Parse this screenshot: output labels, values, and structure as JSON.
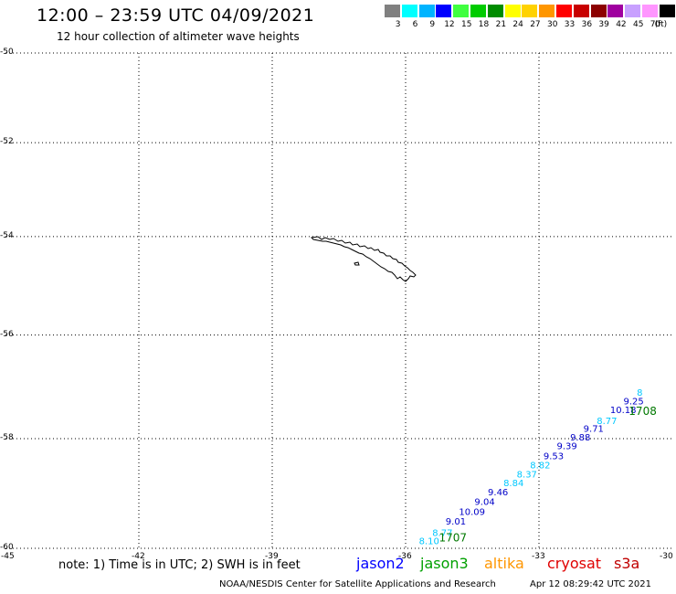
{
  "header": {
    "title": "12:00 – 23:59 UTC 04/09/2021",
    "subtitle": "12 hour collection of altimeter wave heights"
  },
  "legend": {
    "unit": "(ft)",
    "bins": [
      {
        "color": "#808080",
        "label": "3"
      },
      {
        "color": "#00ffff",
        "label": "6"
      },
      {
        "color": "#00b4ff",
        "label": "9"
      },
      {
        "color": "#0000ff",
        "label": "12"
      },
      {
        "color": "#40ff40",
        "label": "15"
      },
      {
        "color": "#00cc00",
        "label": "18"
      },
      {
        "color": "#008c00",
        "label": "21"
      },
      {
        "color": "#ffff00",
        "label": "24"
      },
      {
        "color": "#ffd200",
        "label": "27"
      },
      {
        "color": "#ff9600",
        "label": "30"
      },
      {
        "color": "#ff0000",
        "label": "33"
      },
      {
        "color": "#c80000",
        "label": "36"
      },
      {
        "color": "#8c0000",
        "label": "39"
      },
      {
        "color": "#a000a0",
        "label": "42"
      },
      {
        "color": "#c8a0ff",
        "label": "45"
      },
      {
        "color": "#ff96ff",
        "label": "70"
      },
      {
        "color": "#000000",
        "label": ""
      }
    ]
  },
  "map": {
    "lon_range": [
      -45,
      -30
    ],
    "lat_range": [
      -60,
      -50
    ],
    "grid": "dotted",
    "lat_labels": [
      "-50",
      "-52",
      "-54",
      "-56",
      "-58",
      "-60"
    ],
    "lon_labels": [
      "-45",
      "-42",
      "-39",
      "-36",
      "-33",
      "-30"
    ],
    "track_colors": {
      "cyan": "#00c8ff",
      "blue": "#0000c8",
      "green": "#007800"
    },
    "observations": [
      {
        "lon": -35.7,
        "lat": -59.93,
        "swh": "8.10",
        "color": "cyan"
      },
      {
        "lon": -35.4,
        "lat": -59.78,
        "swh": "8.77",
        "color": "cyan"
      },
      {
        "lon": -35.1,
        "lat": -59.58,
        "swh": "9.01",
        "color": "blue"
      },
      {
        "lon": -34.8,
        "lat": -59.4,
        "swh": "10.09",
        "color": "blue"
      },
      {
        "lon": -34.45,
        "lat": -59.22,
        "swh": "9.04",
        "color": "blue"
      },
      {
        "lon": -34.15,
        "lat": -59.05,
        "swh": "9.46",
        "color": "blue"
      },
      {
        "lon": -33.8,
        "lat": -58.88,
        "swh": "8.84",
        "color": "cyan"
      },
      {
        "lon": -33.5,
        "lat": -58.72,
        "swh": "8.37",
        "color": "cyan"
      },
      {
        "lon": -33.2,
        "lat": -58.55,
        "swh": "8.82",
        "color": "cyan"
      },
      {
        "lon": -32.9,
        "lat": -58.38,
        "swh": "9.53",
        "color": "blue"
      },
      {
        "lon": -32.6,
        "lat": -58.2,
        "swh": "9.39",
        "color": "blue"
      },
      {
        "lon": -32.3,
        "lat": -58.03,
        "swh": "9.88",
        "color": "blue"
      },
      {
        "lon": -32.0,
        "lat": -57.87,
        "swh": "9.71",
        "color": "blue"
      },
      {
        "lon": -31.7,
        "lat": -57.72,
        "swh": "8.77",
        "color": "cyan"
      },
      {
        "lon": -31.4,
        "lat": -57.52,
        "swh": "10.18",
        "color": "blue"
      },
      {
        "lon": -31.1,
        "lat": -57.35,
        "swh": "9.25",
        "color": "blue"
      },
      {
        "lon": -30.8,
        "lat": -57.18,
        "swh": "8",
        "color": "cyan"
      }
    ],
    "time_labels": [
      {
        "lon": -35.25,
        "lat": -59.88,
        "text": "1707",
        "color": "green"
      },
      {
        "lon": -30.98,
        "lat": -57.55,
        "text": "1708",
        "color": "green"
      }
    ]
  },
  "note": "note: 1) Time is in UTC; 2) SWH is in feet",
  "satellites": [
    {
      "name": "jason2",
      "color": "#0000ff"
    },
    {
      "name": "jason3",
      "color": "#00a000"
    },
    {
      "name": "altika",
      "color": "#ff9600"
    },
    {
      "name": "cryosat",
      "color": "#e00000"
    },
    {
      "name": "s3a",
      "color": "#c00000"
    }
  ],
  "footer": {
    "credit": "NOAA/NESDIS Center for Satellite Applications and Research",
    "timestamp": "Apr 12 08:29:42 UTC 2021"
  }
}
